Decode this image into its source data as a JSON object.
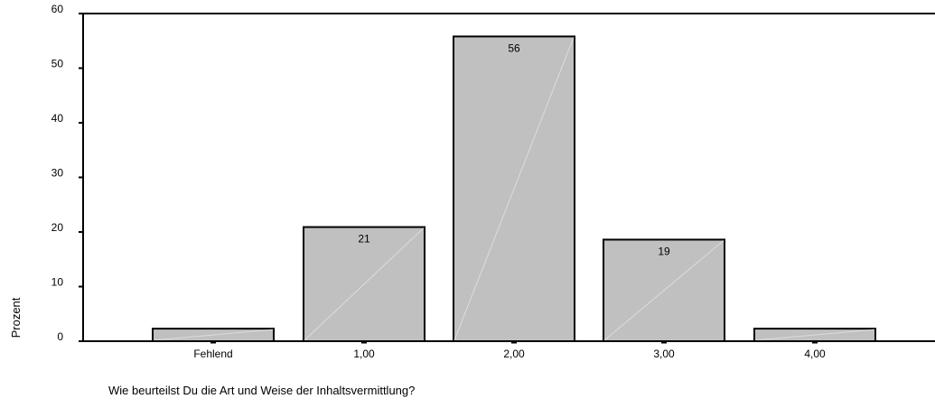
{
  "chart_data": {
    "type": "bar",
    "title": "",
    "xlabel": "Wie beurteilst Du die Art und Weise der Inhaltsvermittlung?",
    "ylabel": "Prozent",
    "categories": [
      "Fehlend",
      "1,00",
      "2,00",
      "3,00",
      "4,00"
    ],
    "values": [
      2.3,
      20.9,
      55.8,
      18.6,
      2.3
    ],
    "data_labels": [
      "",
      "21",
      "56",
      "19",
      ""
    ],
    "ylim": [
      0,
      60
    ],
    "yticks": [
      0,
      10,
      20,
      30,
      40,
      50,
      60
    ],
    "grid": false,
    "legend": "none",
    "colors": {
      "bar_fill": "#c0c0c0",
      "bar_stroke": "#000000",
      "bar_diagonal": "#dcdcdc",
      "axis": "#000000",
      "background": "#ffffff"
    }
  }
}
